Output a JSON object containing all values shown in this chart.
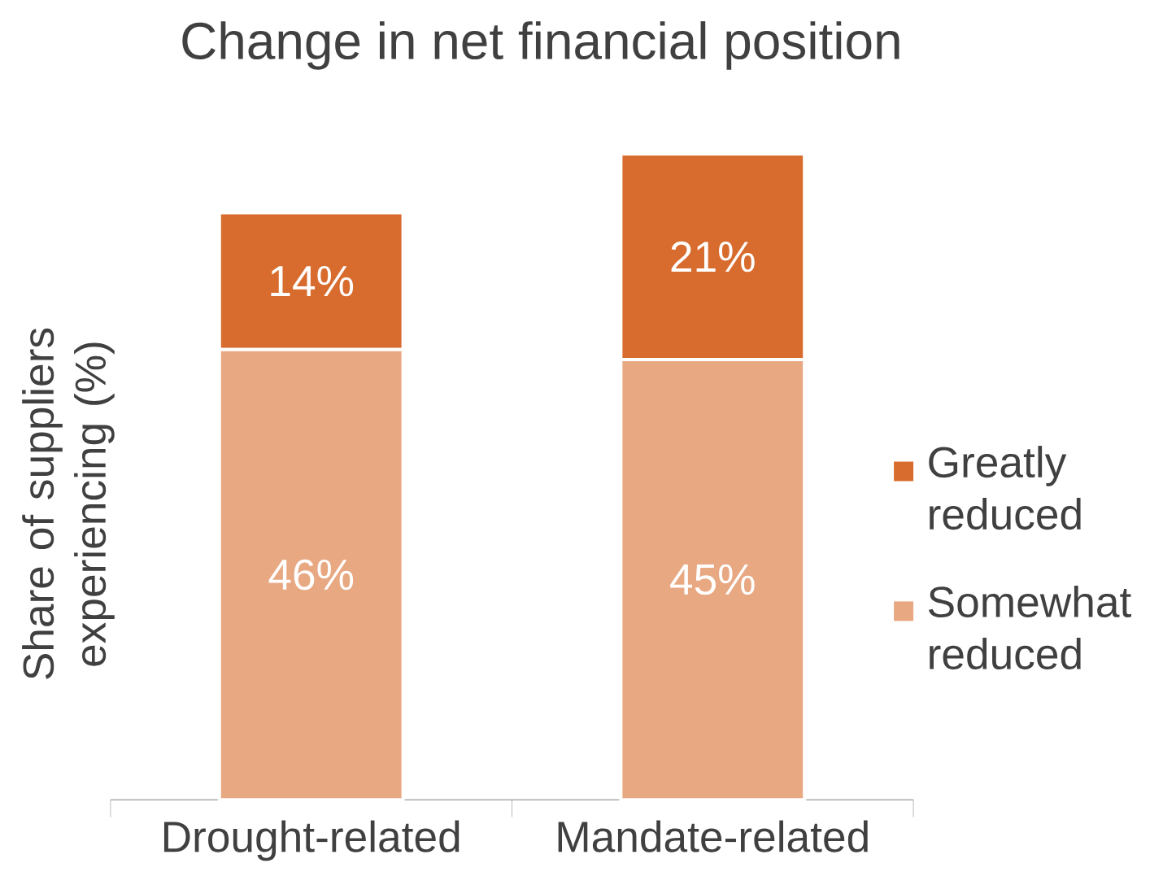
{
  "chart_data": {
    "type": "bar",
    "title": "Change in net financial position",
    "ylabel": "Share of suppliers experiencing (%)",
    "stacked": true,
    "categories": [
      "Drought-related",
      "Mandate-related"
    ],
    "series": [
      {
        "name": "Somewhat reduced",
        "color": "#e8a882",
        "values": [
          46,
          45
        ],
        "value_labels": [
          "46%",
          "45%"
        ]
      },
      {
        "name": "Greatly reduced",
        "color": "#d86c2e",
        "values": [
          14,
          21
        ],
        "value_labels": [
          "14%",
          "21%"
        ]
      }
    ],
    "legend": "right"
  }
}
